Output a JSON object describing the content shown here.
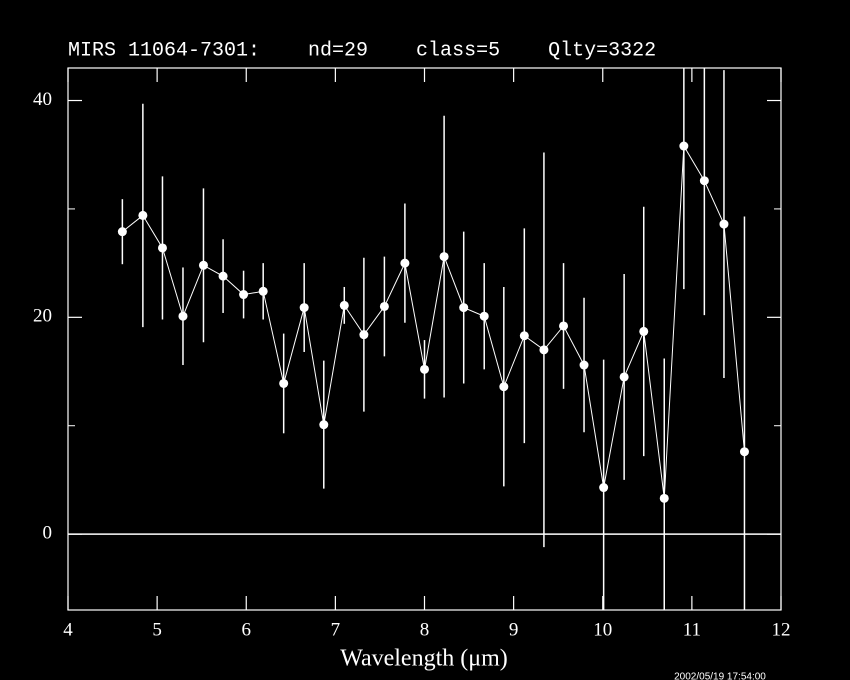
{
  "chart_data": {
    "type": "scatter",
    "title": "MIRS 11064-7301:    nd=29    class=5    Qlty=3322",
    "xlabel": "Wavelength (μm)",
    "footer": "2002/05/19 17:54:00",
    "x": [
      4.61,
      4.84,
      5.06,
      5.29,
      5.52,
      5.74,
      5.97,
      6.19,
      6.42,
      6.65,
      6.87,
      7.1,
      7.32,
      7.55,
      7.78,
      8.0,
      8.22,
      8.44,
      8.67,
      8.89,
      9.12,
      9.34,
      9.56,
      9.79,
      10.01,
      10.24,
      10.46,
      10.69,
      10.91,
      11.14,
      11.36,
      11.59
    ],
    "values": [
      27.9,
      29.4,
      26.4,
      20.1,
      24.8,
      23.8,
      22.1,
      22.4,
      13.9,
      20.9,
      10.1,
      21.1,
      18.4,
      21.0,
      25.0,
      15.2,
      25.6,
      20.9,
      20.1,
      13.6,
      18.3,
      17.0,
      19.2,
      15.6,
      4.3,
      14.5,
      18.7,
      3.3,
      35.8,
      32.6,
      28.6,
      7.6
    ],
    "errors": [
      3.0,
      10.3,
      6.6,
      4.5,
      7.1,
      3.4,
      2.2,
      2.6,
      4.6,
      4.1,
      5.9,
      1.7,
      7.1,
      4.6,
      5.5,
      2.7,
      13.0,
      7.0,
      4.9,
      9.2,
      9.9,
      18.2,
      5.8,
      6.2,
      11.8,
      9.5,
      11.5,
      12.9,
      13.2,
      12.4,
      14.2,
      21.7
    ],
    "color": "#ffffff",
    "background": "#000000",
    "xlim": [
      4,
      12
    ],
    "ylim": [
      -7,
      43
    ],
    "xticks": [
      4,
      5,
      6,
      7,
      8,
      9,
      10,
      11,
      12
    ],
    "yticks": [
      0,
      20,
      40
    ],
    "yminor": [
      10,
      30
    ],
    "hline": 0
  }
}
